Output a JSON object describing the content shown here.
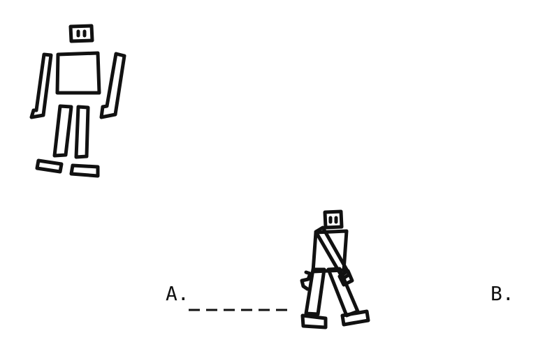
{
  "labels": {
    "start": "A.",
    "end": "B."
  },
  "colors": {
    "ink": "#111111",
    "background": "#ffffff"
  }
}
